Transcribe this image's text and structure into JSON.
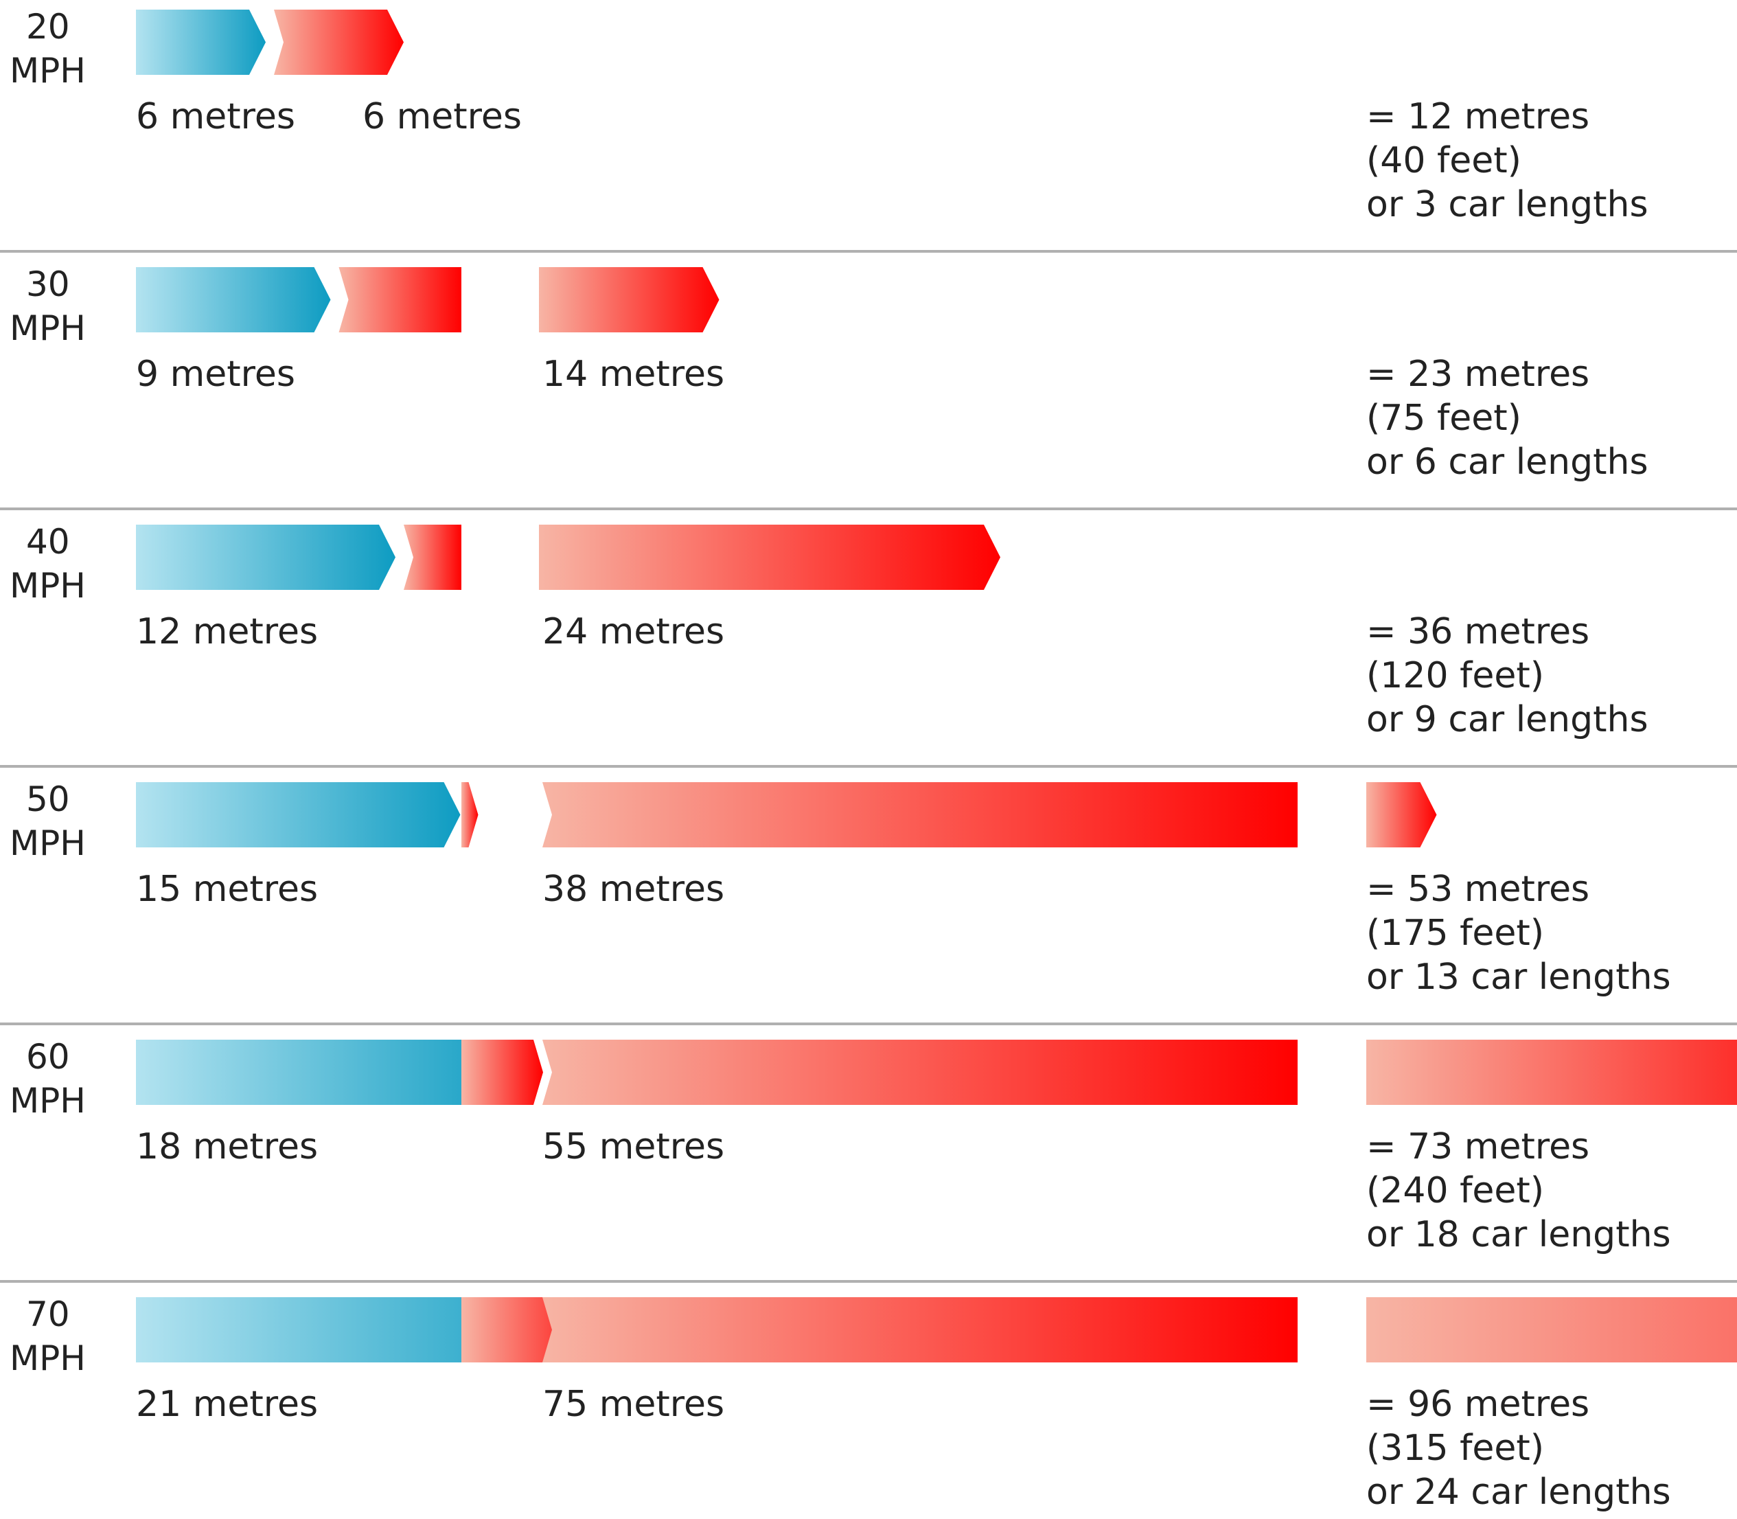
{
  "chart_data": {
    "type": "bar",
    "orientation": "horizontal-stacked",
    "categories": [
      "20 MPH",
      "30 MPH",
      "40 MPH",
      "50 MPH",
      "60 MPH",
      "70 MPH"
    ],
    "series": [
      {
        "values": [
          6,
          9,
          12,
          15,
          18,
          21
        ],
        "labels": [
          "6 metres",
          "9 metres",
          "12 metres",
          "15 metres",
          "18 metres",
          "21 metres"
        ]
      },
      {
        "values": [
          6,
          14,
          24,
          38,
          55,
          75
        ],
        "labels": [
          "6 metres",
          "14 metres",
          "24 metres",
          "38 metres",
          "55 metres",
          "75 metres"
        ]
      }
    ],
    "totals": [
      {
        "value": 12,
        "line1": "= 12 metres",
        "line2": "(40 feet)",
        "line3": "or 3 car lengths"
      },
      {
        "value": 23,
        "line1": "= 23 metres",
        "line2": "(75 feet)",
        "line3": "or 6 car lengths"
      },
      {
        "value": 36,
        "line1": "= 36 metres",
        "line2": "(120 feet)",
        "line3": "or 9 car lengths"
      },
      {
        "value": 53,
        "line1": "= 53 metres",
        "line2": "(175 feet)",
        "line3": "or 13 car lengths"
      },
      {
        "value": 73,
        "line1": "= 73 metres",
        "line2": "(240 feet)",
        "line3": "or 18 car lengths"
      },
      {
        "value": 96,
        "line1": "= 96 metres",
        "line2": "(315 feet)",
        "line3": "or 24 car lengths"
      }
    ],
    "colors": {
      "series1_start": "#b3e3f0",
      "series1_end": "#0e9cc2",
      "series2_start": "#f7b5a5",
      "series2_end": "#ff0000",
      "divider": "#b0b0b0",
      "text": "#222222"
    },
    "grid": false,
    "legend": "none"
  }
}
